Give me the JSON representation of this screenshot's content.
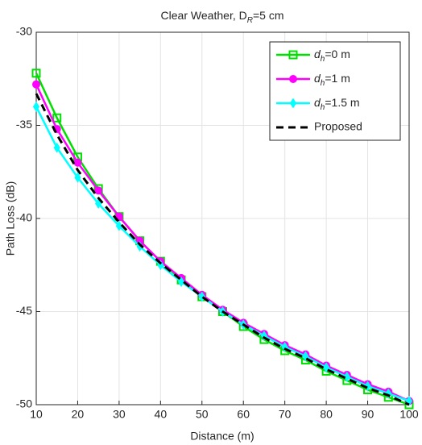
{
  "chart_data": {
    "type": "line",
    "title": "Clear Weather, DR=5 cm",
    "xlabel": "Distance (m)",
    "ylabel": "Path Loss (dB)",
    "x": [
      10,
      15,
      20,
      25,
      30,
      35,
      40,
      45,
      50,
      55,
      60,
      65,
      70,
      75,
      80,
      85,
      90,
      95,
      100
    ],
    "series": [
      {
        "name": "dh=0 m",
        "color": "#00e000",
        "marker": "square",
        "dash": false,
        "values": [
          -32.2,
          -34.6,
          -36.7,
          -38.4,
          -39.9,
          -41.2,
          -42.3,
          -43.3,
          -44.2,
          -45.0,
          -45.8,
          -46.5,
          -47.1,
          -47.6,
          -48.2,
          -48.7,
          -49.2,
          -49.6,
          -50.0
        ]
      },
      {
        "name": "dh=1 m",
        "color": "#ff00ff",
        "marker": "circle",
        "dash": false,
        "values": [
          -32.8,
          -35.2,
          -37.0,
          -38.5,
          -39.9,
          -41.2,
          -42.3,
          -43.2,
          -44.1,
          -44.9,
          -45.6,
          -46.2,
          -46.8,
          -47.3,
          -47.9,
          -48.4,
          -48.9,
          -49.3,
          -49.8
        ]
      },
      {
        "name": "dh=1.5 m",
        "color": "#00ffff",
        "marker": "diamond",
        "dash": false,
        "values": [
          -34.0,
          -36.2,
          -37.8,
          -39.2,
          -40.4,
          -41.5,
          -42.5,
          -43.4,
          -44.2,
          -45.0,
          -45.7,
          -46.3,
          -46.9,
          -47.4,
          -48.0,
          -48.5,
          -49.0,
          -49.4,
          -49.8
        ]
      },
      {
        "name": "Proposed",
        "color": "#000000",
        "marker": "none",
        "dash": true,
        "values": [
          -33.3,
          -35.5,
          -37.4,
          -38.9,
          -40.2,
          -41.4,
          -42.4,
          -43.3,
          -44.2,
          -45.0,
          -45.7,
          -46.4,
          -47.0,
          -47.5,
          -48.1,
          -48.6,
          -49.1,
          -49.5,
          -50.0
        ]
      }
    ],
    "xlim": [
      10,
      100
    ],
    "xticks": [
      10,
      20,
      30,
      40,
      50,
      60,
      70,
      80,
      90,
      100
    ],
    "ylim": [
      -50,
      -30
    ],
    "yticks": [
      -50,
      -45,
      -40,
      -35,
      -30
    ],
    "grid": true,
    "legend": "northeast"
  }
}
